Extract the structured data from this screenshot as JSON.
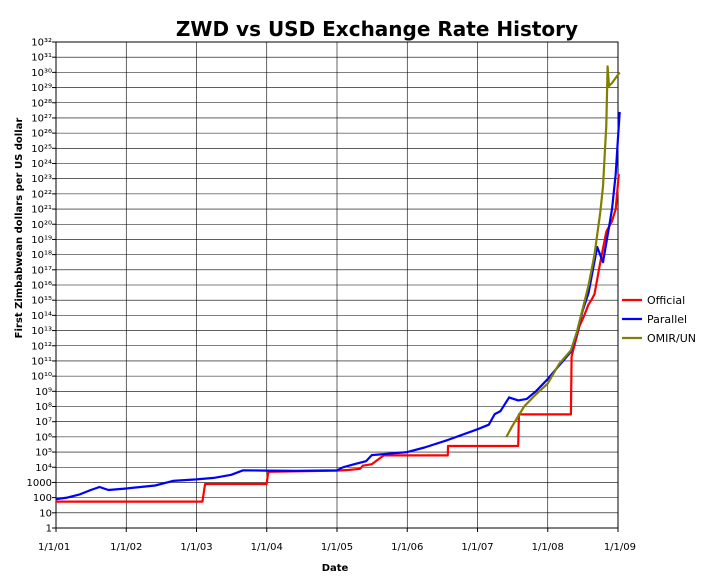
{
  "chart_data": {
    "type": "line",
    "title": "ZWD vs USD Exchange Rate History",
    "xlabel": "Date",
    "ylabel": "First Zimbabwean dollars per US dollar",
    "x_ticks": [
      "1/1/01",
      "1/1/02",
      "1/1/03",
      "1/1/04",
      "1/1/05",
      "1/1/06",
      "1/1/07",
      "1/1/08",
      "1/1/09"
    ],
    "y_scale": "log",
    "y_tick_labels": [
      {
        "exp": 0,
        "label": "1"
      },
      {
        "exp": 1,
        "label": "10"
      },
      {
        "exp": 2,
        "label": "100"
      },
      {
        "exp": 3,
        "label": "1000"
      },
      {
        "exp": 4,
        "label": "10⁴"
      },
      {
        "exp": 5,
        "label": "10⁵"
      },
      {
        "exp": 6,
        "label": "10⁶"
      },
      {
        "exp": 7,
        "label": "10⁷"
      },
      {
        "exp": 8,
        "label": "10⁸"
      },
      {
        "exp": 9,
        "label": "10⁹"
      },
      {
        "exp": 10,
        "label": "10¹⁰"
      },
      {
        "exp": 11,
        "label": "10¹¹"
      },
      {
        "exp": 12,
        "label": "10¹²"
      },
      {
        "exp": 13,
        "label": "10¹³"
      },
      {
        "exp": 14,
        "label": "10¹⁴"
      },
      {
        "exp": 15,
        "label": "10¹⁵"
      },
      {
        "exp": 16,
        "label": "10¹⁶"
      },
      {
        "exp": 17,
        "label": "10¹⁷"
      },
      {
        "exp": 18,
        "label": "10¹⁸"
      },
      {
        "exp": 19,
        "label": "10¹⁹"
      },
      {
        "exp": 20,
        "label": "10²⁰"
      },
      {
        "exp": 21,
        "label": "10²¹"
      },
      {
        "exp": 22,
        "label": "10²²"
      },
      {
        "exp": 23,
        "label": "10²³"
      },
      {
        "exp": 24,
        "label": "10²⁴"
      },
      {
        "exp": 25,
        "label": "10²⁵"
      },
      {
        "exp": 26,
        "label": "10²⁶"
      },
      {
        "exp": 27,
        "label": "10²⁷"
      },
      {
        "exp": 28,
        "label": "10²⁸"
      },
      {
        "exp": 29,
        "label": "10²⁹"
      },
      {
        "exp": 30,
        "label": "10³⁰"
      },
      {
        "exp": 31,
        "label": "10³¹"
      },
      {
        "exp": 32,
        "label": "10³²"
      }
    ],
    "ylim_exp": [
      0,
      32
    ],
    "grid": true,
    "legend_position": "right",
    "series": [
      {
        "name": "Official",
        "color": "#ff0000",
        "points": [
          [
            "2001-01-01",
            1.74
          ],
          [
            "2003-02-01",
            1.74
          ],
          [
            "2003-02-15",
            2.9
          ],
          [
            "2004-01-01",
            2.9
          ],
          [
            "2004-01-10",
            3.7
          ],
          [
            "2005-01-01",
            3.78
          ],
          [
            "2005-03-01",
            3.82
          ],
          [
            "2005-05-01",
            3.9
          ],
          [
            "2005-05-15",
            4.1
          ],
          [
            "2005-07-01",
            4.2
          ],
          [
            "2005-08-01",
            4.5
          ],
          [
            "2005-09-01",
            4.78
          ],
          [
            "2006-01-01",
            4.78
          ],
          [
            "2006-07-31",
            4.78
          ],
          [
            "2006-08-01",
            5.4
          ],
          [
            "2007-08-01",
            5.4
          ],
          [
            "2007-08-05",
            7.48
          ],
          [
            "2008-05-01",
            7.48
          ],
          [
            "2008-05-05",
            11.3
          ],
          [
            "2008-06-15",
            13.3
          ],
          [
            "2008-07-10",
            14.0
          ],
          [
            "2008-07-31",
            14.7
          ],
          [
            "2008-08-15",
            15.0
          ],
          [
            "2008-09-01",
            15.4
          ],
          [
            "2008-10-01",
            17.5
          ],
          [
            "2008-11-01",
            19.5
          ],
          [
            "2008-12-01",
            20.2
          ],
          [
            "2008-12-20",
            21.0
          ],
          [
            "2009-01-05",
            23.3
          ]
        ]
      },
      {
        "name": "Parallel",
        "color": "#0000ff",
        "points": [
          [
            "2001-01-01",
            1.9
          ],
          [
            "2001-03-01",
            2.0
          ],
          [
            "2001-05-01",
            2.2
          ],
          [
            "2001-07-01",
            2.5
          ],
          [
            "2001-08-15",
            2.7
          ],
          [
            "2001-10-01",
            2.5
          ],
          [
            "2002-01-01",
            2.6
          ],
          [
            "2002-06-01",
            2.8
          ],
          [
            "2002-09-01",
            3.1
          ],
          [
            "2003-01-01",
            3.2
          ],
          [
            "2003-04-01",
            3.3
          ],
          [
            "2003-07-01",
            3.5
          ],
          [
            "2003-09-01",
            3.8
          ],
          [
            "2004-01-01",
            3.78
          ],
          [
            "2004-06-01",
            3.76
          ],
          [
            "2005-01-01",
            3.8
          ],
          [
            "2005-02-01",
            4.0
          ],
          [
            "2005-04-01",
            4.2
          ],
          [
            "2005-06-01",
            4.4
          ],
          [
            "2005-07-01",
            4.8
          ],
          [
            "2006-01-01",
            5.0
          ],
          [
            "2006-04-01",
            5.3
          ],
          [
            "2006-08-01",
            5.8
          ],
          [
            "2007-01-01",
            6.5
          ],
          [
            "2007-03-01",
            6.8
          ],
          [
            "2007-04-01",
            7.5
          ],
          [
            "2007-05-01",
            7.7
          ],
          [
            "2007-06-15",
            8.6
          ],
          [
            "2007-08-01",
            8.4
          ],
          [
            "2007-09-15",
            8.5
          ],
          [
            "2007-11-01",
            9.0
          ],
          [
            "2008-01-01",
            9.8
          ],
          [
            "2008-03-01",
            10.7
          ],
          [
            "2008-05-01",
            11.6
          ],
          [
            "2008-06-01",
            12.8
          ],
          [
            "2008-07-01",
            14.3
          ],
          [
            "2008-08-01",
            15.5
          ],
          [
            "2008-09-15",
            18.5
          ],
          [
            "2008-10-15",
            17.5
          ],
          [
            "2008-11-15",
            19.8
          ],
          [
            "2008-12-01",
            21.0
          ],
          [
            "2008-12-20",
            23.3
          ],
          [
            "2009-01-01",
            25.7
          ],
          [
            "2009-01-10",
            27.4
          ]
        ]
      },
      {
        "name": "OMIR/UN",
        "color": "#808000",
        "points": [
          [
            "2007-06-01",
            6.0
          ],
          [
            "2007-07-01",
            6.7
          ],
          [
            "2007-09-01",
            8.0
          ],
          [
            "2007-11-01",
            8.8
          ],
          [
            "2008-01-01",
            9.5
          ],
          [
            "2008-03-01",
            10.8
          ],
          [
            "2008-05-01",
            11.7
          ],
          [
            "2008-06-01",
            12.9
          ],
          [
            "2008-07-01",
            14.4
          ],
          [
            "2008-08-01",
            16.0
          ],
          [
            "2008-09-01",
            18.0
          ],
          [
            "2008-10-01",
            20.8
          ],
          [
            "2008-10-15",
            22.5
          ],
          [
            "2008-11-01",
            26.5
          ],
          [
            "2008-11-08",
            30.4
          ],
          [
            "2008-11-15",
            29.1
          ],
          [
            "2008-12-01",
            29.3
          ],
          [
            "2009-01-10",
            30.0
          ]
        ]
      }
    ]
  }
}
